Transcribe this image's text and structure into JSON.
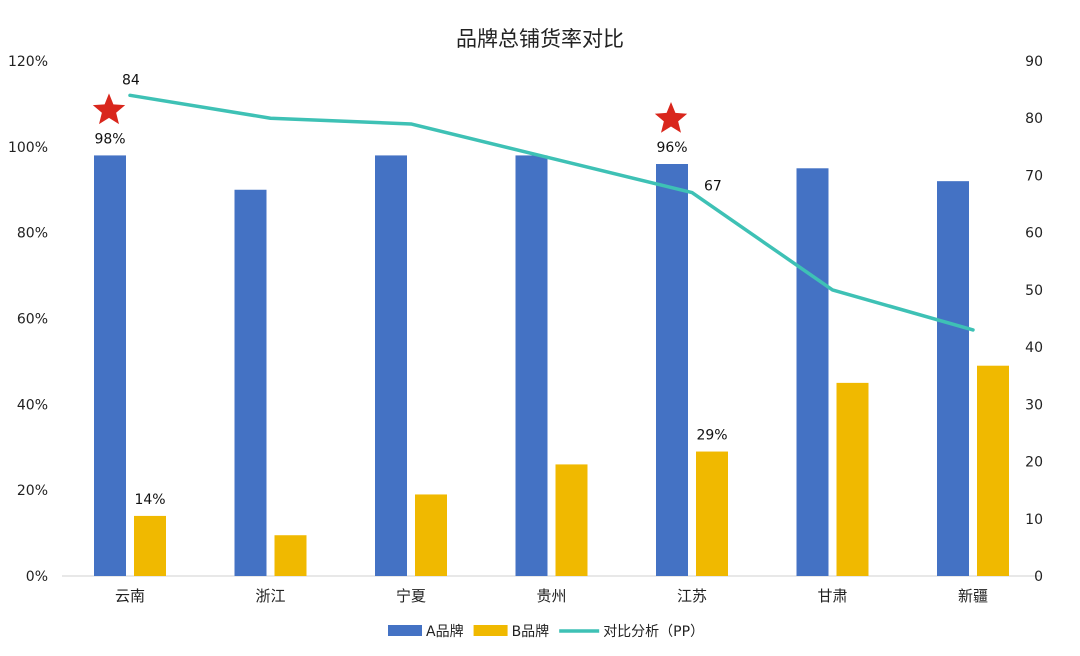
{
  "chart_data": {
    "type": "bar",
    "title": "品牌总铺货率对比",
    "categories": [
      "云南",
      "浙江",
      "宁夏",
      "贵州",
      "江苏",
      "甘肃",
      "新疆"
    ],
    "series": [
      {
        "name": "A品牌",
        "type": "bar",
        "axis": "left",
        "color": "#4472C4",
        "values": [
          98,
          90,
          98,
          98,
          96,
          95,
          92
        ]
      },
      {
        "name": "B品牌",
        "type": "bar",
        "axis": "left",
        "color": "#F0B900",
        "values": [
          14,
          9.5,
          19,
          26,
          29,
          45,
          49
        ]
      },
      {
        "name": "对比分析（PP）",
        "type": "line",
        "axis": "right",
        "color": "#3EC1B5",
        "values": [
          84,
          80,
          79,
          73,
          67,
          50,
          43
        ]
      }
    ],
    "left_axis": {
      "min": 0,
      "max": 120,
      "step": 20,
      "tick_labels": [
        "0%",
        "20%",
        "40%",
        "60%",
        "80%",
        "100%",
        "120%"
      ]
    },
    "right_axis": {
      "min": 0,
      "max": 90,
      "step": 10,
      "tick_labels": [
        "0",
        "10",
        "20",
        "30",
        "40",
        "50",
        "60",
        "70",
        "80",
        "90"
      ]
    },
    "data_labels": [
      {
        "series": 0,
        "index": 0,
        "text": "98%"
      },
      {
        "series": 0,
        "index": 4,
        "text": "96%"
      },
      {
        "series": 1,
        "index": 0,
        "text": "14%"
      },
      {
        "series": 1,
        "index": 4,
        "text": "29%"
      },
      {
        "series": 2,
        "index": 0,
        "text": "84"
      },
      {
        "series": 2,
        "index": 4,
        "text": "67"
      }
    ],
    "star_markers": {
      "color": "#D9261C",
      "indices": [
        0,
        4
      ]
    },
    "grid": false,
    "legend_position": "bottom"
  }
}
